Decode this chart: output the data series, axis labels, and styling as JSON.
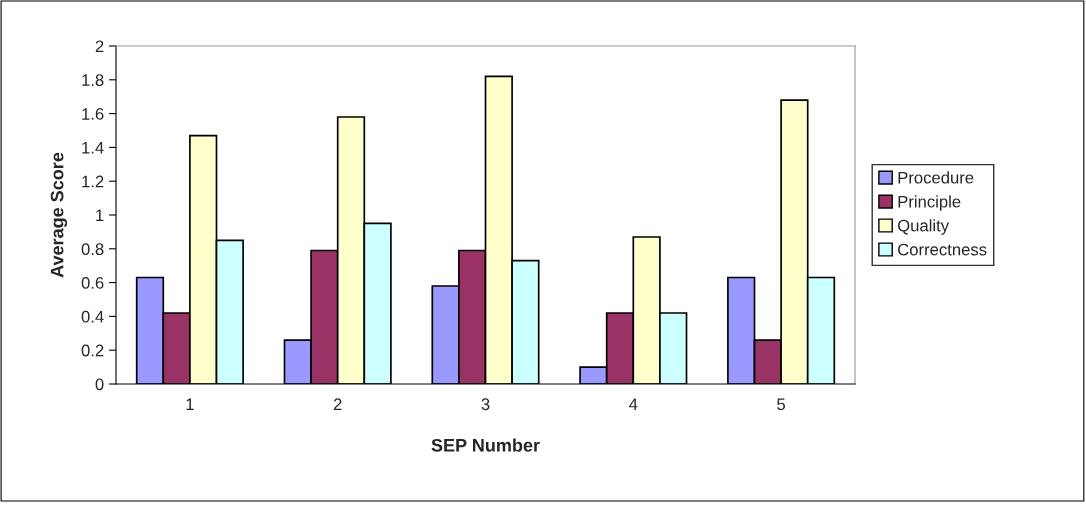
{
  "chart_data": {
    "type": "bar",
    "xlabel": "SEP Number",
    "ylabel": "Average Score",
    "categories": [
      "1",
      "2",
      "3",
      "4",
      "5"
    ],
    "series": [
      {
        "name": "Procedure",
        "color": "#9999ff",
        "values": [
          0.63,
          0.26,
          0.58,
          0.1,
          0.63
        ]
      },
      {
        "name": "Principle",
        "color": "#993366",
        "values": [
          0.42,
          0.79,
          0.79,
          0.42,
          0.26
        ]
      },
      {
        "name": "Quality",
        "color": "#ffffcc",
        "values": [
          1.47,
          1.58,
          1.82,
          0.87,
          1.68
        ]
      },
      {
        "name": "Correctness",
        "color": "#ccffff",
        "values": [
          0.85,
          0.95,
          0.73,
          0.42,
          0.63
        ]
      }
    ],
    "ylim": [
      0,
      2
    ],
    "yticks": [
      0,
      {
        "value": 0.2,
        "label": "0.2"
      },
      {
        "value": 0.4,
        "label": "0.4"
      },
      {
        "value": 0.6,
        "label": "0.6"
      },
      {
        "value": 0.8,
        "label": "0.8"
      },
      1,
      {
        "value": 1.2,
        "label": "1.2"
      },
      {
        "value": 1.4,
        "label": "1.4"
      },
      {
        "value": 1.6,
        "label": "1.6"
      },
      {
        "value": 1.8,
        "label": "1.8"
      },
      2
    ],
    "grid": false,
    "legend": "right"
  }
}
